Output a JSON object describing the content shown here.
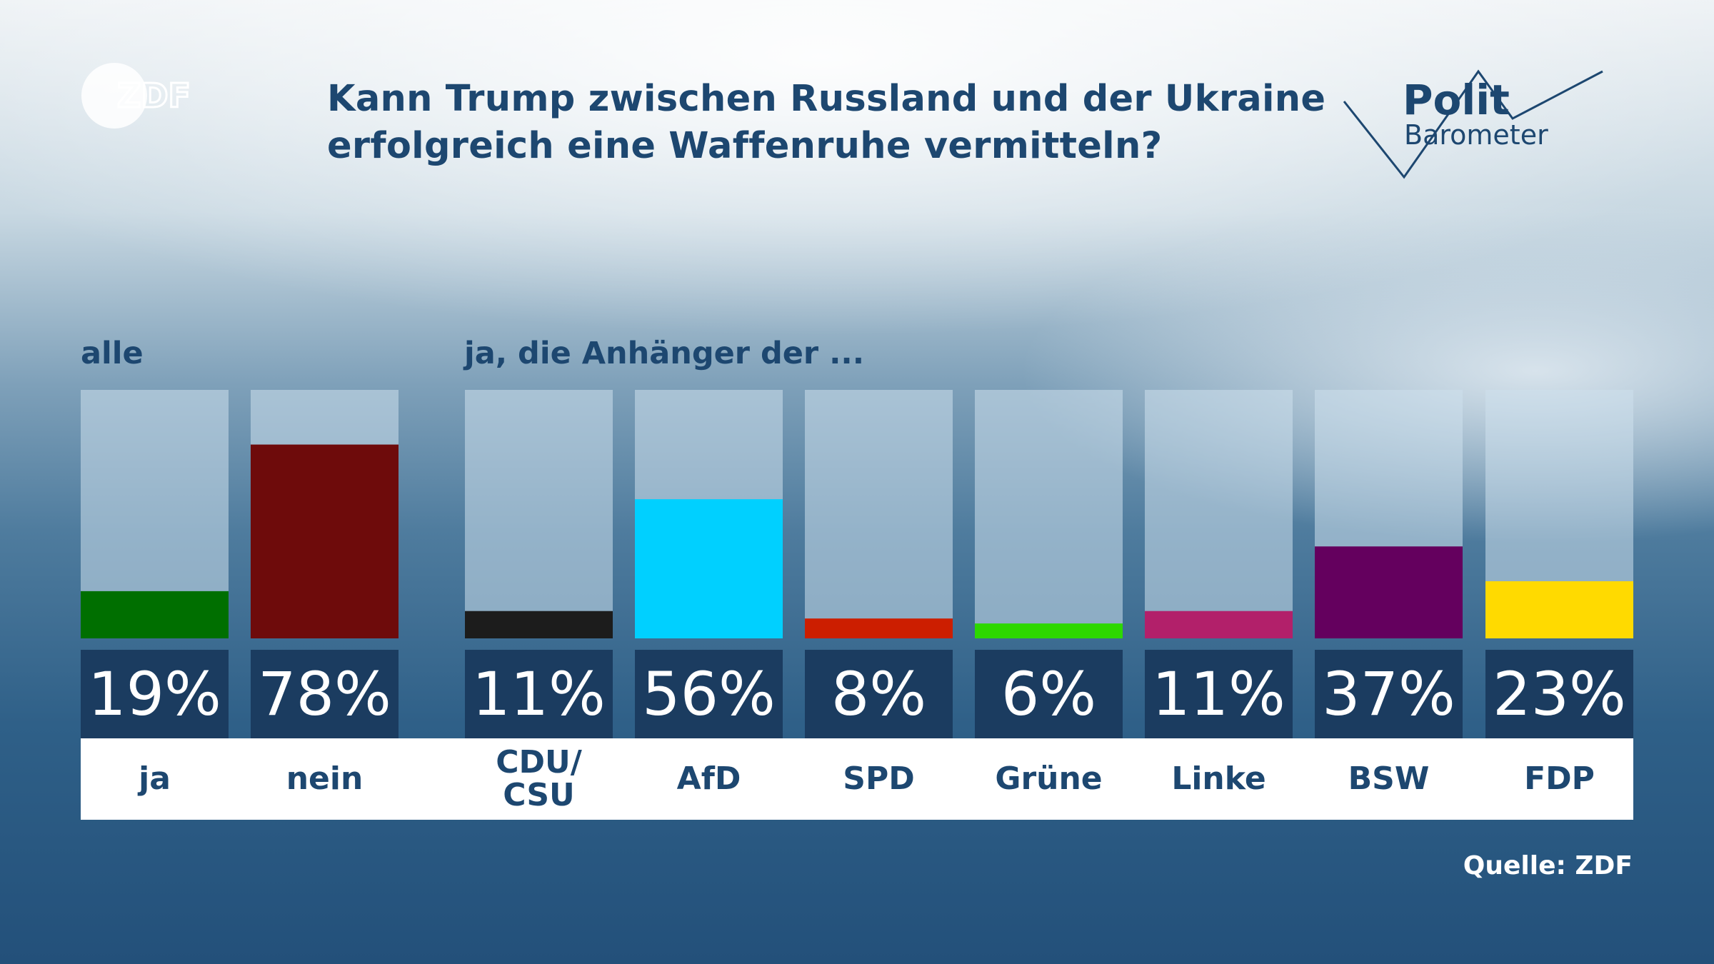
{
  "logo_brand": "ZDF",
  "title_line1": "Kann Trump zwischen Russland und der Ukraine",
  "title_line2": "erfolgreich eine Waffenruhe vermitteln?",
  "badge": {
    "line1": "Polit",
    "line2": "Barometer"
  },
  "chart_data": {
    "type": "bar",
    "title": "Kann Trump zwischen Russland und der Ukraine erfolgreich eine Waffenruhe vermitteln?",
    "ylim": [
      0,
      100
    ],
    "groups": [
      {
        "label": "alle",
        "categories": [
          "ja",
          "nein"
        ],
        "values": [
          19,
          78
        ],
        "value_labels": [
          "19%",
          "78%"
        ],
        "colors": [
          "#006f00",
          "#6e0b0b"
        ]
      },
      {
        "label": "ja, die Anhänger der ...",
        "categories": [
          "CDU/\nCSU",
          "AfD",
          "SPD",
          "Grüne",
          "Linke",
          "BSW",
          "FDP"
        ],
        "values": [
          11,
          56,
          8,
          6,
          11,
          37,
          23
        ],
        "value_labels": [
          "11%",
          "56%",
          "8%",
          "6%",
          "11%",
          "37%",
          "23%"
        ],
        "colors": [
          "#1c1c1c",
          "#00d0ff",
          "#cc1e00",
          "#2dd800",
          "#b2206a",
          "#64005e",
          "#ffda00"
        ]
      }
    ],
    "bar_scale_note": "bars are filled from the bottom",
    "source": "Quelle: ZDF"
  },
  "colors": {
    "title": "#1d4770",
    "value_box": "#1b3c60",
    "track": "rgba(205,224,236,0.55)"
  }
}
